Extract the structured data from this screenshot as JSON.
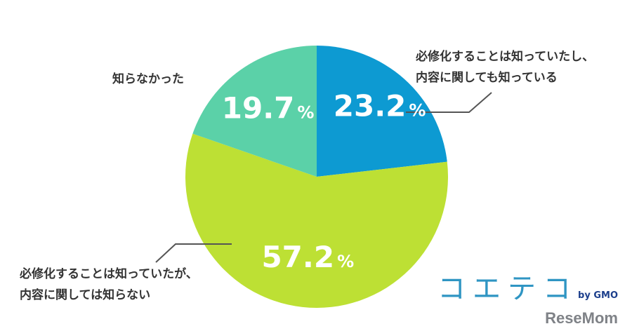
{
  "chart_data": {
    "type": "pie",
    "unit": "%",
    "slices": [
      {
        "label": "必修化することは知っていたし、\n内容に関しても知っている",
        "value": 23.2,
        "value_text": "23.2",
        "color": "#0d9ad2"
      },
      {
        "label": "必修化することは知っていたが、\n内容に関しては知らない",
        "value": 57.2,
        "value_text": "57.2",
        "color": "#bde034"
      },
      {
        "label": "知らなかった",
        "value": 19.7,
        "value_text": "19.7",
        "color": "#5bd1a8"
      }
    ]
  },
  "labels": {
    "known_both": [
      "必修化することは知っていたし、",
      "内容に関しても知っている"
    ],
    "known_not_content": [
      "必修化することは知っていたが、",
      "内容に関しては知らない"
    ],
    "not_known": "知らなかった"
  },
  "brand": {
    "main": "コエテコ",
    "by": "by GMO",
    "sub": "ReseMom"
  }
}
